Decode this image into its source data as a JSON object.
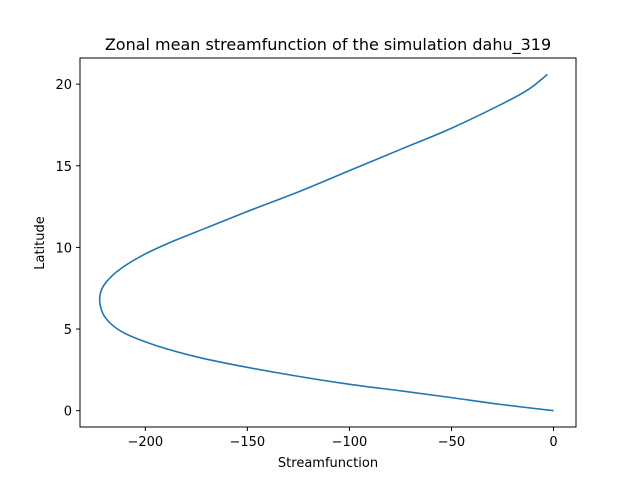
{
  "chart_data": {
    "type": "line",
    "title": "Zonal mean streamfunction of the simulation dahu_319",
    "xlabel": "Streamfunction",
    "ylabel": "Latitude",
    "xlim": [
      -232,
      11
    ],
    "ylim": [
      -1.0,
      21.6
    ],
    "xticks": [
      -200,
      -150,
      -100,
      -50,
      0
    ],
    "yticks": [
      0,
      5,
      10,
      15,
      20
    ],
    "xtick_labels": [
      "−200",
      "−150",
      "−100",
      "−50",
      "0"
    ],
    "ytick_labels": [
      "0",
      "5",
      "10",
      "15",
      "20"
    ],
    "grid": false,
    "series": [
      {
        "color": "#1f77b4",
        "points": [
          {
            "x": 0,
            "y": 0.0
          },
          {
            "x": -27,
            "y": 0.4
          },
          {
            "x": -50,
            "y": 0.8
          },
          {
            "x": -74,
            "y": 1.2
          },
          {
            "x": -99,
            "y": 1.6
          },
          {
            "x": -125,
            "y": 2.1
          },
          {
            "x": -152,
            "y": 2.7
          },
          {
            "x": -175,
            "y": 3.3
          },
          {
            "x": -195,
            "y": 4.0
          },
          {
            "x": -211,
            "y": 4.8
          },
          {
            "x": -219,
            "y": 5.6
          },
          {
            "x": -222,
            "y": 6.4
          },
          {
            "x": -222,
            "y": 7.2
          },
          {
            "x": -219,
            "y": 7.9
          },
          {
            "x": -212,
            "y": 8.7
          },
          {
            "x": -200,
            "y": 9.6
          },
          {
            "x": -186,
            "y": 10.4
          },
          {
            "x": -170,
            "y": 11.2
          },
          {
            "x": -150,
            "y": 12.2
          },
          {
            "x": -125,
            "y": 13.4
          },
          {
            "x": -100,
            "y": 14.7
          },
          {
            "x": -75,
            "y": 16.0
          },
          {
            "x": -50,
            "y": 17.3
          },
          {
            "x": -25,
            "y": 18.8
          },
          {
            "x": -12,
            "y": 19.7
          },
          {
            "x": -3,
            "y": 20.6
          }
        ]
      }
    ]
  }
}
